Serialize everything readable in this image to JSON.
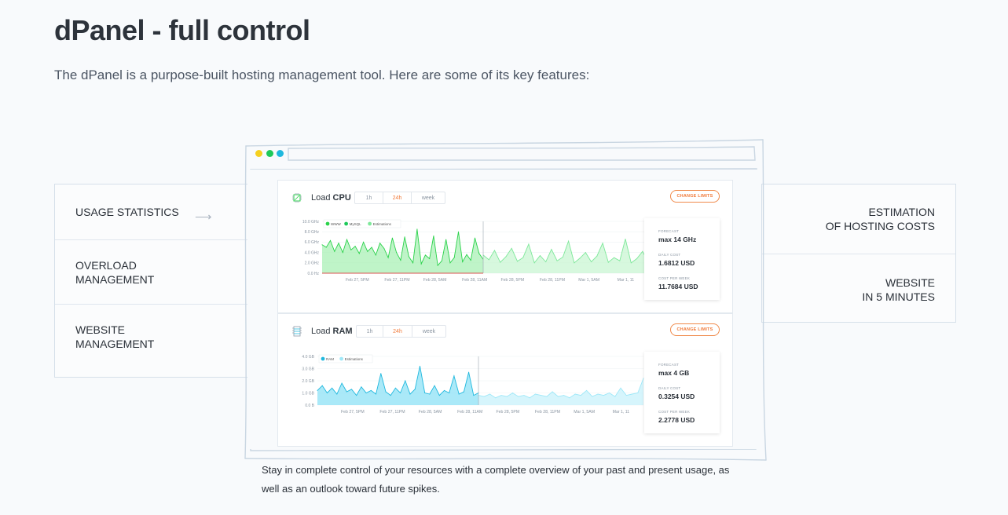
{
  "header": {
    "title": "dPanel - full control",
    "subtitle": "The dPanel is a purpose-built hosting management tool. Here are some of its key features:"
  },
  "features_left": [
    {
      "label": "USAGE STATISTICS",
      "active": true
    },
    {
      "label": "OVERLOAD\nMANAGEMENT"
    },
    {
      "label": "WEBSITE\nMANAGEMENT"
    }
  ],
  "features_right": [
    {
      "label": "ESTIMATION\nOF HOSTING COSTS"
    },
    {
      "label": "WEBSITE\nIN 5 MINUTES"
    }
  ],
  "icons": {
    "arrow": "arrow-right-icon",
    "cpu": "cpu-chip-icon",
    "ram": "ram-module-icon"
  },
  "colors": {
    "cpu": "#2ad24a",
    "cpu_fill": "#aaf0b6",
    "cpu_est": "#7ee89a",
    "ram": "#1fb8de",
    "ram_fill": "#8ee2f5",
    "ram_est": "#9fe8f8",
    "accent": "#f07a3a"
  },
  "cpu": {
    "title_prefix": "Load",
    "title_bold": "CPU",
    "ranges": [
      "1h",
      "24h",
      "week"
    ],
    "selected_range": "24h",
    "change_limits": "CHANGE LIMITS",
    "legend": [
      "WWW",
      "MySQL",
      "Estimations"
    ],
    "forecast": [
      {
        "label": "FORECAST",
        "value": "max 14 GHz"
      },
      {
        "label": "DAILY COST",
        "value": "1.6812 USD"
      },
      {
        "label": "COST PER WEEK",
        "value": "11.7684 USD"
      }
    ]
  },
  "ram": {
    "title_prefix": "Load",
    "title_bold": "RAM",
    "ranges": [
      "1h",
      "24h",
      "week"
    ],
    "selected_range": "24h",
    "change_limits": "CHANGE LIMITS",
    "legend": [
      "RAM",
      "Estimations"
    ],
    "forecast": [
      {
        "label": "FORECAST",
        "value": "max 4 GB"
      },
      {
        "label": "DAILY COST",
        "value": "0.3254 USD"
      },
      {
        "label": "COST PER WEEK",
        "value": "2.2778 USD"
      }
    ]
  },
  "chart_data": [
    {
      "type": "area",
      "title": "Load CPU",
      "yticks": [
        "10.0 GHz",
        "8.0 GHz",
        "6.0 GHz",
        "4.0 GHz",
        "2.0 GHz",
        "0.0 Hz"
      ],
      "ylim": [
        0,
        10
      ],
      "xticks": [
        "Feb 27, 5PM",
        "Feb 27, 11PM",
        "Feb 28, 5AM",
        "Feb 28, 11AM",
        "Feb 28, 5PM",
        "Feb 28, 11PM",
        "Mar 1, 5AM",
        "Mar 1, 11"
      ],
      "series": [
        {
          "name": "WWW",
          "values": [
            5.5,
            5.0,
            6.3,
            4.2,
            5.8,
            4.0,
            6.5,
            4.5,
            5.2,
            3.8,
            6.0,
            4.2,
            5.0,
            3.5,
            5.8,
            4.8,
            3.0,
            6.8,
            4.0,
            2.5,
            7.0,
            3.2,
            2.0,
            8.5,
            1.8,
            3.5,
            2.8,
            7.2,
            1.5,
            2.4,
            6.5,
            2.0,
            3.0,
            8.0,
            2.2,
            3.6,
            2.5,
            6.8,
            3.8,
            2.7
          ]
        },
        {
          "name": "Estimations",
          "values": [
            3.5,
            2.6,
            4.4,
            2.1,
            3.2,
            4.8,
            2.3,
            3.0,
            5.6,
            2.0,
            3.4,
            2.2,
            4.6,
            2.4,
            3.1,
            6.2,
            2.0,
            2.9,
            4.0,
            2.2,
            3.3,
            5.8,
            2.1,
            3.0,
            2.4,
            6.6,
            2.0,
            2.8,
            4.2,
            2.3
          ]
        }
      ]
    },
    {
      "type": "area",
      "title": "Load RAM",
      "yticks": [
        "4.0 GB",
        "3.0 GB",
        "2.0 GB",
        "1.0 GB",
        "0.0 B"
      ],
      "ylim": [
        0,
        4
      ],
      "xticks": [
        "Feb 27, 5PM",
        "Feb 27, 11PM",
        "Feb 28, 5AM",
        "Feb 28, 11AM",
        "Feb 28, 5PM",
        "Feb 28, 11PM",
        "Mar 1, 5AM",
        "Mar 1, 11"
      ],
      "series": [
        {
          "name": "RAM",
          "values": [
            1.2,
            1.6,
            1.0,
            1.4,
            0.9,
            1.8,
            1.1,
            1.3,
            0.8,
            1.5,
            1.0,
            1.2,
            0.9,
            2.6,
            1.1,
            0.8,
            1.4,
            1.0,
            2.0,
            0.9,
            1.3,
            3.2,
            1.0,
            0.9,
            1.6,
            0.8,
            1.2,
            1.0,
            2.4,
            0.9,
            1.1,
            2.7,
            0.8,
            1.0
          ]
        },
        {
          "name": "Estimations",
          "values": [
            0.8,
            0.7,
            0.9,
            0.6,
            0.8,
            0.7,
            1.0,
            0.7,
            0.8,
            0.6,
            0.9,
            0.8,
            0.7,
            1.1,
            0.7,
            0.8,
            0.6,
            0.9,
            0.8,
            1.2,
            0.7,
            0.9,
            0.8,
            1.0,
            0.7,
            1.4,
            0.8,
            0.9,
            1.0,
            2.2
          ]
        }
      ]
    }
  ],
  "caption": "Stay in complete control of your resources with a complete overview of your past and present usage, as well as an outlook toward future spikes."
}
